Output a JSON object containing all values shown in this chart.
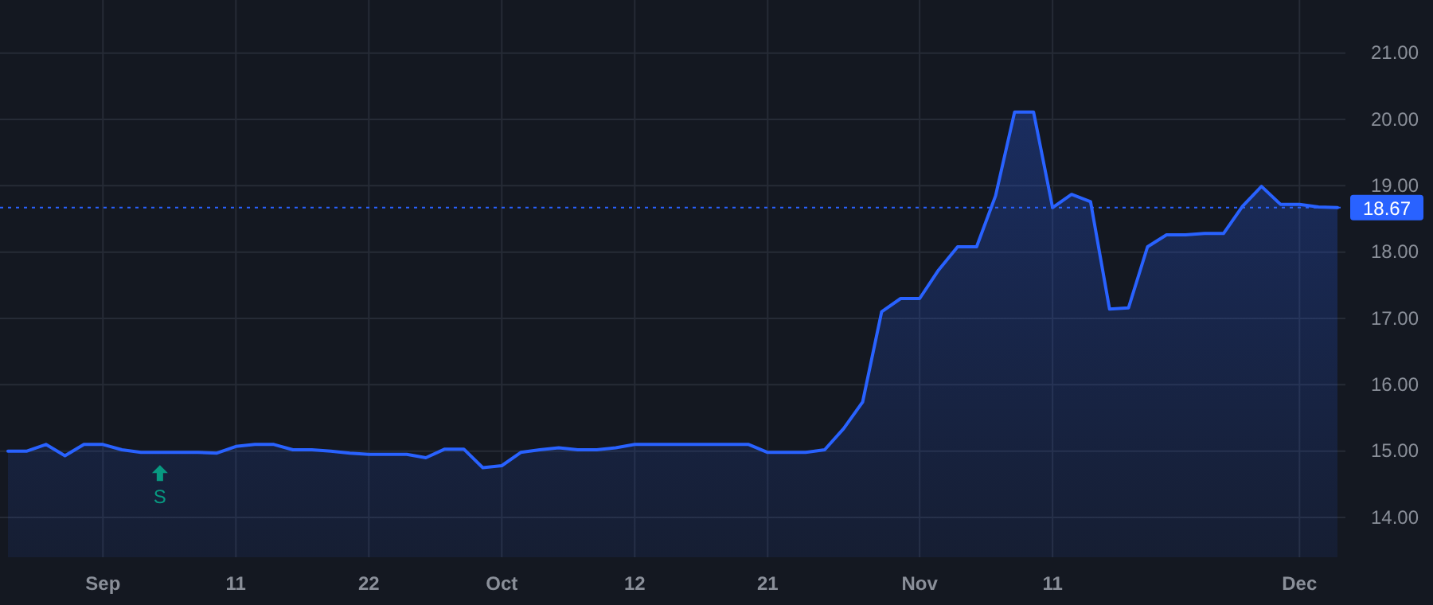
{
  "chart_data": {
    "type": "area",
    "categories": [
      null,
      null,
      null,
      null,
      null,
      "Sep",
      null,
      null,
      null,
      null,
      null,
      null,
      "11",
      null,
      null,
      null,
      null,
      null,
      null,
      "22",
      null,
      null,
      null,
      null,
      null,
      null,
      "Oct",
      null,
      null,
      null,
      null,
      null,
      null,
      "12",
      null,
      null,
      null,
      null,
      null,
      null,
      "21",
      null,
      null,
      null,
      null,
      null,
      null,
      null,
      "Nov",
      null,
      null,
      null,
      null,
      null,
      null,
      "11",
      null,
      null,
      null,
      null,
      null,
      null,
      null,
      null,
      null,
      null,
      null,
      null,
      "Dec",
      null,
      null
    ],
    "series": [
      {
        "color": "#2962ff",
        "values": [
          15.0,
          15.0,
          15.1,
          14.93,
          15.1,
          15.1,
          15.02,
          14.98,
          14.98,
          14.98,
          14.98,
          14.97,
          15.07,
          15.1,
          15.1,
          15.02,
          15.02,
          15.0,
          14.97,
          14.95,
          14.95,
          14.95,
          14.9,
          15.03,
          15.03,
          14.75,
          14.78,
          14.98,
          15.02,
          15.05,
          15.02,
          15.02,
          15.05,
          15.1,
          15.1,
          15.1,
          15.1,
          15.1,
          15.1,
          15.1,
          14.98,
          14.98,
          14.98,
          15.02,
          15.34,
          15.74,
          17.1,
          17.3,
          17.3,
          17.73,
          18.08,
          18.08,
          18.85,
          20.11,
          20.11,
          18.67,
          18.87,
          18.76,
          17.14,
          17.16,
          18.08,
          18.26,
          18.26,
          18.28,
          18.28,
          18.69,
          18.99,
          18.72,
          18.72,
          18.68,
          18.67
        ]
      }
    ],
    "ylim": [
      13.4,
      21.8
    ],
    "yticks": [
      {
        "value": 14,
        "label": "14.00"
      },
      {
        "value": 15,
        "label": "15.00"
      },
      {
        "value": 16,
        "label": "16.00"
      },
      {
        "value": 17,
        "label": "17.00"
      },
      {
        "value": 18,
        "label": "18.00"
      },
      {
        "value": 19,
        "label": "19.00"
      },
      {
        "value": 20,
        "label": "20.00"
      },
      {
        "value": 21,
        "label": "21.00"
      }
    ],
    "grid": true,
    "ref_lines": [
      {
        "axis": "y",
        "value": 18.67,
        "label": "18.67",
        "color": "#2962ff",
        "line_style": "dotted"
      }
    ],
    "annotations": [
      "S"
    ]
  }
}
